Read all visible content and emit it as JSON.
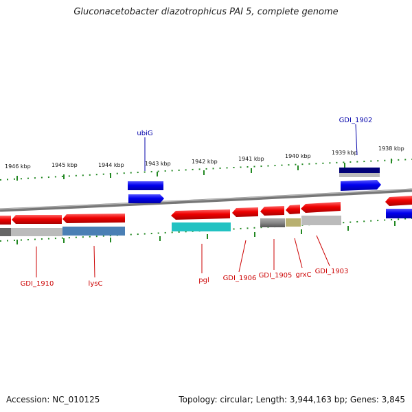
{
  "title": "Gluconacetobacter diazotrophicus PAI 5, complete genome",
  "accession": "Accession: NC_010125",
  "topology": "Topology: circular; Length: 3,944,163 bp; Genes: 3,845",
  "kbp_ticks": [
    {
      "label": "1946 kbp",
      "pos": 1946
    },
    {
      "label": "1945 kbp",
      "pos": 1945
    },
    {
      "label": "1944 kbp",
      "pos": 1944
    },
    {
      "label": "1943 kbp",
      "pos": 1943
    },
    {
      "label": "1942 kbp",
      "pos": 1942
    },
    {
      "label": "1941 kbp",
      "pos": 1941
    },
    {
      "label": "1940 kbp",
      "pos": 1940
    },
    {
      "label": "1939 kbp",
      "pos": 1939
    },
    {
      "label": "1938 kbp",
      "pos": 1938
    }
  ],
  "gene_labels": [
    {
      "name": "ubiG",
      "strand": "forward",
      "color": "#0000aa"
    },
    {
      "name": "GDI_1902",
      "strand": "forward",
      "color": "#0000aa"
    },
    {
      "name": "GDI_1910",
      "strand": "reverse",
      "color": "#cc0000"
    },
    {
      "name": "lysC",
      "strand": "reverse",
      "color": "#cc0000"
    },
    {
      "name": "pgl",
      "strand": "reverse",
      "color": "#cc0000"
    },
    {
      "name": "GDI_1906",
      "strand": "reverse",
      "color": "#cc0000"
    },
    {
      "name": "GDI_1905",
      "strand": "reverse",
      "color": "#cc0000"
    },
    {
      "name": "grxC",
      "strand": "reverse",
      "color": "#cc0000"
    },
    {
      "name": "GDI_1903",
      "strand": "reverse",
      "color": "#cc0000"
    }
  ],
  "colors": {
    "forward_cds": "#0000ee",
    "reverse_cds": "#ee0000",
    "backbone": "#888888",
    "ticks": "#228822"
  }
}
